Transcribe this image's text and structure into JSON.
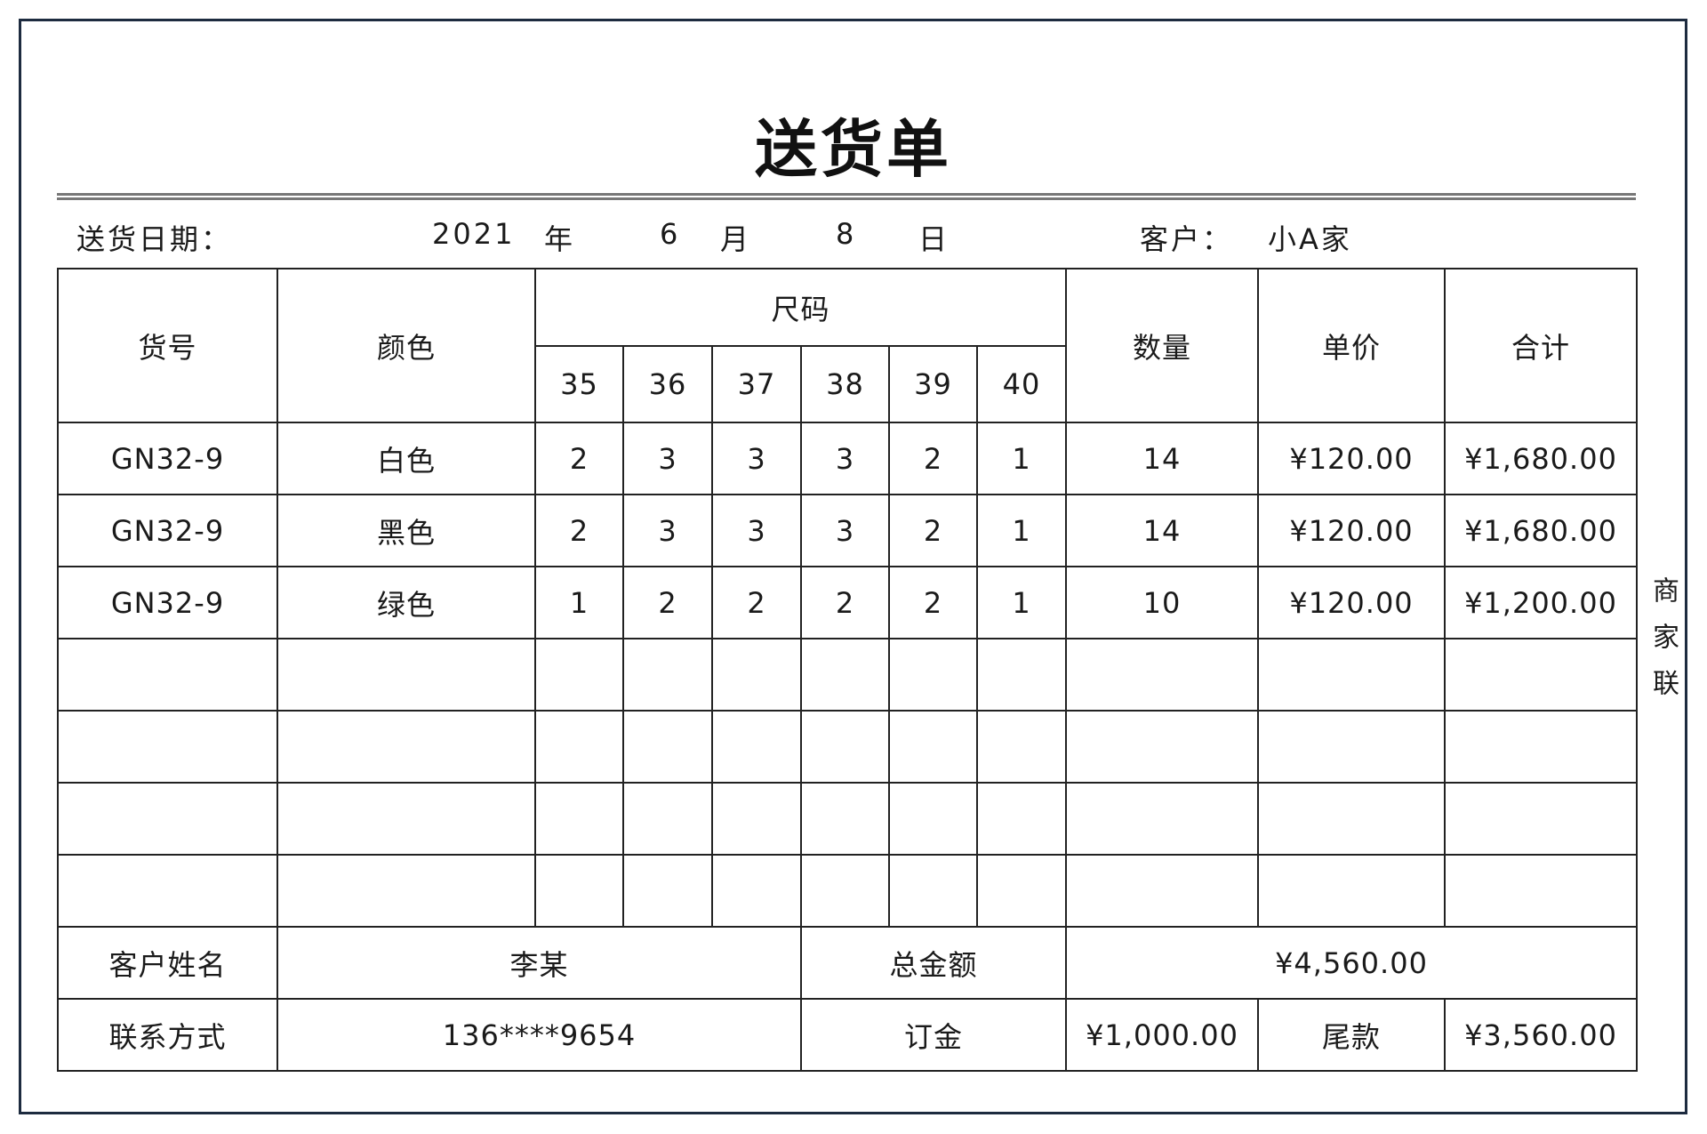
{
  "title": "送货单",
  "date_label": "送货日期：",
  "date": {
    "year": "2021",
    "year_unit": "年",
    "month": "6",
    "month_unit": "月",
    "day": "8",
    "day_unit": "日"
  },
  "customer_label": "客户：",
  "customer": "小A家",
  "headers": {
    "item_no": "货号",
    "color": "颜色",
    "size": "尺码",
    "sizes": [
      "35",
      "36",
      "37",
      "38",
      "39",
      "40"
    ],
    "quantity": "数量",
    "unit_price": "单价",
    "total": "合计"
  },
  "rows": [
    {
      "item_no": "GN32-9",
      "color": "白色",
      "sizes": [
        "2",
        "3",
        "3",
        "3",
        "2",
        "1"
      ],
      "quantity": "14",
      "unit_price": "¥120.00",
      "total": "¥1,680.00"
    },
    {
      "item_no": "GN32-9",
      "color": "黑色",
      "sizes": [
        "2",
        "3",
        "3",
        "3",
        "2",
        "1"
      ],
      "quantity": "14",
      "unit_price": "¥120.00",
      "total": "¥1,680.00"
    },
    {
      "item_no": "GN32-9",
      "color": "绿色",
      "sizes": [
        "1",
        "2",
        "2",
        "2",
        "2",
        "1"
      ],
      "quantity": "10",
      "unit_price": "¥120.00",
      "total": "¥1,200.00"
    }
  ],
  "footer": {
    "customer_name_label": "客户姓名",
    "customer_name": "李某",
    "total_amount_label": "总金额",
    "total_amount": "¥4,560.00",
    "contact_label": "联系方式",
    "contact": "136****9654",
    "deposit_label": "订金",
    "deposit": "¥1,000.00",
    "balance_label": "尾款",
    "balance": "¥3,560.00"
  },
  "side_label": "商家联",
  "colors": {
    "frame": "#1d2b3f",
    "grid": "#222222"
  }
}
